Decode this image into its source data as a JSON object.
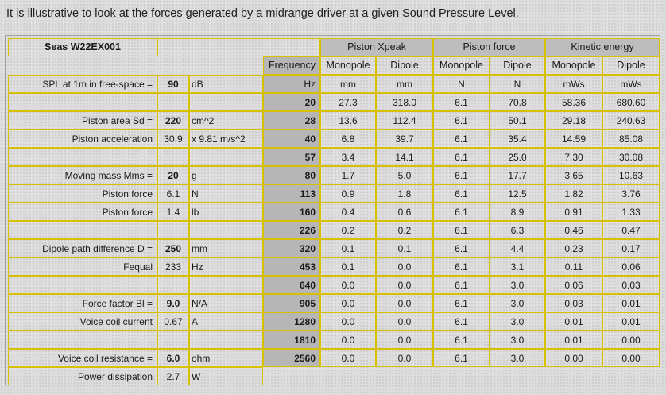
{
  "intro": "It is illustrative to look at the forces generated by a midrange driver at a given Sound Pressure Level.",
  "driver_name": "Seas W22EX001",
  "group_headers": [
    "Piston Xpeak",
    "Piston force",
    "Kinetic energy"
  ],
  "column_headers": [
    "Frequency",
    "Monopole",
    "Dipole",
    "Monopole",
    "Dipole",
    "Monopole",
    "Dipole"
  ],
  "units": [
    "Hz",
    "mm",
    "mm",
    "N",
    "N",
    "mWs",
    "mWs"
  ],
  "params": [
    {
      "label": "SPL at 1m in free-space =",
      "value": "90",
      "unit": "dB",
      "bold": true
    },
    {
      "label": "",
      "value": "",
      "unit": "",
      "bold": false
    },
    {
      "label": "Piston area Sd =",
      "value": "220",
      "unit": "cm^2",
      "bold": true
    },
    {
      "label": "Piston acceleration",
      "value": "30.9",
      "unit": "x 9.81 m/s^2",
      "bold": false
    },
    {
      "label": "",
      "value": "",
      "unit": "",
      "bold": false
    },
    {
      "label": "Moving mass Mms =",
      "value": "20",
      "unit": "g",
      "bold": true
    },
    {
      "label": "Piston force",
      "value": "6.1",
      "unit": "N",
      "bold": false
    },
    {
      "label": "Piston force",
      "value": "1.4",
      "unit": "lb",
      "bold": false
    },
    {
      "label": "",
      "value": "",
      "unit": "",
      "bold": false
    },
    {
      "label": "Dipole path difference D =",
      "value": "250",
      "unit": "mm",
      "bold": true
    },
    {
      "label": "Fequal",
      "value": "233",
      "unit": "Hz",
      "bold": false
    },
    {
      "label": "",
      "value": "",
      "unit": "",
      "bold": false
    },
    {
      "label": "Force factor Bl =",
      "value": "9.0",
      "unit": "N/A",
      "bold": true
    },
    {
      "label": "Voice coil current",
      "value": "0.67",
      "unit": "A",
      "bold": false
    },
    {
      "label": "",
      "value": "",
      "unit": "",
      "bold": false
    },
    {
      "label": "Voice coil resistance =",
      "value": "6.0",
      "unit": "ohm",
      "bold": true
    },
    {
      "label": "Power dissipation",
      "value": "2.7",
      "unit": "W",
      "bold": false
    }
  ],
  "rows": [
    [
      "20",
      "27.3",
      "318.0",
      "6.1",
      "70.8",
      "58.36",
      "680.60"
    ],
    [
      "28",
      "13.6",
      "112.4",
      "6.1",
      "50.1",
      "29.18",
      "240.63"
    ],
    [
      "40",
      "6.8",
      "39.7",
      "6.1",
      "35.4",
      "14.59",
      "85.08"
    ],
    [
      "57",
      "3.4",
      "14.1",
      "6.1",
      "25.0",
      "7.30",
      "30.08"
    ],
    [
      "80",
      "1.7",
      "5.0",
      "6.1",
      "17.7",
      "3.65",
      "10.63"
    ],
    [
      "113",
      "0.9",
      "1.8",
      "6.1",
      "12.5",
      "1.82",
      "3.76"
    ],
    [
      "160",
      "0.4",
      "0.6",
      "6.1",
      "8.9",
      "0.91",
      "1.33"
    ],
    [
      "226",
      "0.2",
      "0.2",
      "6.1",
      "6.3",
      "0.46",
      "0.47"
    ],
    [
      "320",
      "0.1",
      "0.1",
      "6.1",
      "4.4",
      "0.23",
      "0.17"
    ],
    [
      "453",
      "0.1",
      "0.0",
      "6.1",
      "3.1",
      "0.11",
      "0.06"
    ],
    [
      "640",
      "0.0",
      "0.0",
      "6.1",
      "3.0",
      "0.06",
      "0.03"
    ],
    [
      "905",
      "0.0",
      "0.0",
      "6.1",
      "3.0",
      "0.03",
      "0.01"
    ],
    [
      "1280",
      "0.0",
      "0.0",
      "6.1",
      "3.0",
      "0.01",
      "0.01"
    ],
    [
      "1810",
      "0.0",
      "0.0",
      "6.1",
      "3.0",
      "0.01",
      "0.00"
    ],
    [
      "2560",
      "0.0",
      "0.0",
      "6.1",
      "3.0",
      "0.00",
      "0.00"
    ]
  ]
}
